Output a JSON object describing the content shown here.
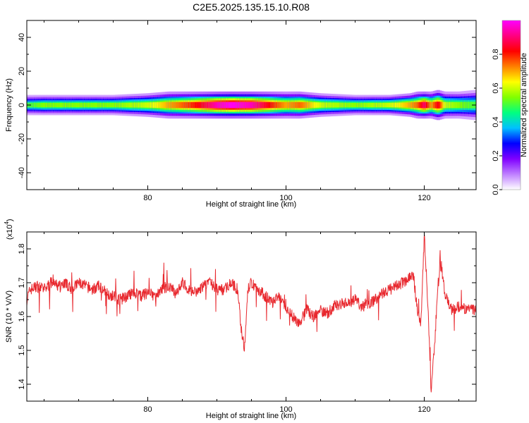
{
  "title": "C2E5.2025.135.15.10.R08",
  "colors": {
    "line": "#e8282e",
    "axis": "#000000"
  },
  "chart_data": [
    {
      "type": "heatmap",
      "xlabel": "Height of straight line (km)",
      "ylabel": "Frequency (Hz)",
      "xlim": [
        62.5,
        127.5
      ],
      "ylim": [
        -50,
        50
      ],
      "xticks": [
        80,
        100,
        120
      ],
      "yticks": [
        -40,
        -20,
        0,
        20,
        40
      ],
      "colorbar": {
        "label": "Normalized spectral amplitude",
        "range": [
          0,
          1
        ],
        "ticks": [
          "0.0",
          "0.2",
          "0.4",
          "0.6",
          "0.8"
        ],
        "colors": [
          "#ffffff",
          "#bf80ff",
          "#8000ff",
          "#0000ff",
          "#00c0ff",
          "#00ff80",
          "#80ff00",
          "#ffff00",
          "#ff8000",
          "#ff0000",
          "#ff0080",
          "#ff00ff"
        ]
      },
      "band": {
        "center_frequency": 0,
        "x": [
          62.5,
          65,
          70,
          75,
          80,
          83,
          85,
          88,
          90,
          92,
          95,
          98,
          100,
          102,
          105,
          110,
          115,
          118,
          119,
          120,
          121,
          122,
          123,
          125,
          127.5
        ],
        "amplitude": [
          0.5,
          0.55,
          0.55,
          0.55,
          0.6,
          0.7,
          0.75,
          0.85,
          0.95,
          1.0,
          0.95,
          0.8,
          0.7,
          0.75,
          0.6,
          0.55,
          0.6,
          0.7,
          0.75,
          0.9,
          0.7,
          0.85,
          0.6,
          0.55,
          0.5
        ],
        "half_width_hz": [
          3,
          3,
          3,
          3,
          3.5,
          4,
          4,
          4,
          4,
          4,
          4,
          4,
          4,
          4,
          3.5,
          3,
          3,
          3.5,
          4,
          4,
          4,
          4.5,
          4,
          4,
          4.5
        ]
      }
    },
    {
      "type": "line",
      "xlabel": "Height of straight line (km)",
      "ylabel": "SNR (10 * V/V)",
      "yscale_label": "(x10",
      "yscale_exponent": "4",
      "xlim": [
        62.5,
        127.5
      ],
      "ylim": [
        1.35,
        1.85
      ],
      "xticks": [
        80,
        100,
        120
      ],
      "yticks": [
        "1.4",
        "1.5",
        "1.6",
        "1.7",
        "1.8"
      ],
      "series": [
        {
          "x": [
            62.5,
            63,
            64,
            65,
            66,
            67,
            68,
            69,
            70,
            71,
            72,
            73,
            74,
            75,
            76,
            77,
            78,
            79,
            80,
            81,
            82,
            83,
            84,
            85,
            86,
            87,
            88,
            89,
            90,
            91,
            92,
            93,
            93.5,
            94,
            94.5,
            95,
            96,
            97,
            98,
            99,
            100,
            101,
            102,
            103,
            104,
            105,
            106,
            107,
            108,
            109,
            110,
            111,
            112,
            113,
            114,
            115,
            116,
            117,
            118,
            118.5,
            119,
            119.5,
            120,
            120.5,
            121,
            121.5,
            122,
            122.5,
            123,
            124,
            125,
            126,
            127.5
          ],
          "y": [
            1.65,
            1.68,
            1.69,
            1.68,
            1.7,
            1.69,
            1.7,
            1.68,
            1.7,
            1.69,
            1.68,
            1.69,
            1.67,
            1.66,
            1.65,
            1.66,
            1.67,
            1.66,
            1.67,
            1.66,
            1.68,
            1.69,
            1.67,
            1.7,
            1.68,
            1.67,
            1.69,
            1.7,
            1.68,
            1.68,
            1.7,
            1.68,
            1.57,
            1.5,
            1.68,
            1.7,
            1.68,
            1.66,
            1.64,
            1.66,
            1.62,
            1.6,
            1.58,
            1.62,
            1.6,
            1.62,
            1.61,
            1.63,
            1.64,
            1.64,
            1.65,
            1.63,
            1.64,
            1.65,
            1.67,
            1.68,
            1.69,
            1.7,
            1.72,
            1.71,
            1.62,
            1.58,
            1.84,
            1.65,
            1.37,
            1.52,
            1.7,
            1.75,
            1.66,
            1.62,
            1.63,
            1.62,
            1.62
          ]
        }
      ]
    }
  ]
}
